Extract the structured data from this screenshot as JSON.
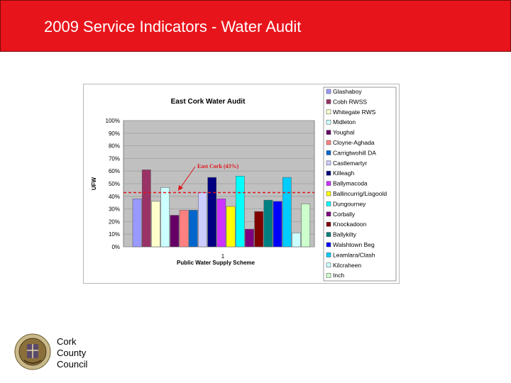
{
  "banner": {
    "title": "2009 Service Indicators - Water Audit"
  },
  "footer": {
    "org_lines": [
      "Cork",
      "County",
      "Council"
    ]
  },
  "colors": {
    "banner": "#e8141b",
    "plot_bg": "#c0c0c0",
    "average_line": "#e0141a"
  },
  "chart_data": {
    "type": "bar",
    "title": "East Cork Water Audit",
    "xlabel": "Public Water Supply Scheme",
    "ylabel": "UFW",
    "categories": [
      "1"
    ],
    "ylim": [
      0,
      100
    ],
    "y_ticks": [
      "0%",
      "10%",
      "20%",
      "30%",
      "40%",
      "50%",
      "60%",
      "70%",
      "80%",
      "90%",
      "100%"
    ],
    "grid": true,
    "legend_position": "right",
    "reference_line": {
      "label": "East Cork (43%)",
      "value": 43
    },
    "series": [
      {
        "name": "Glashaboy",
        "value": 38,
        "color": "#9999ff"
      },
      {
        "name": "Cobh RWSS",
        "value": 61,
        "color": "#993366"
      },
      {
        "name": "Whitegate RWS",
        "value": 36,
        "color": "#ffffcc"
      },
      {
        "name": "Midleton",
        "value": 47,
        "color": "#ccffff"
      },
      {
        "name": "Youghal",
        "value": 25,
        "color": "#660066"
      },
      {
        "name": "Cloyne-Aghada",
        "value": 29,
        "color": "#ff8080"
      },
      {
        "name": "Carrigtwohill DA",
        "value": 29,
        "color": "#0066cc"
      },
      {
        "name": "Castlemartyr",
        "value": 43,
        "color": "#ccccff"
      },
      {
        "name": "Killeagh",
        "value": 55,
        "color": "#000080"
      },
      {
        "name": "Ballymacoda",
        "value": 38,
        "color": "#cc33ff"
      },
      {
        "name": "Ballincurrig/Lisgoold",
        "value": 32,
        "color": "#ffff00"
      },
      {
        "name": "Dungourney",
        "value": 56,
        "color": "#00ffff"
      },
      {
        "name": "Corbally",
        "value": 14,
        "color": "#800080"
      },
      {
        "name": "Knockadoon",
        "value": 28,
        "color": "#800000"
      },
      {
        "name": "Ballykilty",
        "value": 37,
        "color": "#008080"
      },
      {
        "name": "Walshtown Beg",
        "value": 36,
        "color": "#0000ff"
      },
      {
        "name": "Leamlara/Clash",
        "value": 55,
        "color": "#00ccff"
      },
      {
        "name": "Kilcraheen",
        "value": 11,
        "color": "#ccffff"
      },
      {
        "name": "Inch",
        "value": 34,
        "color": "#ccffcc"
      }
    ]
  }
}
